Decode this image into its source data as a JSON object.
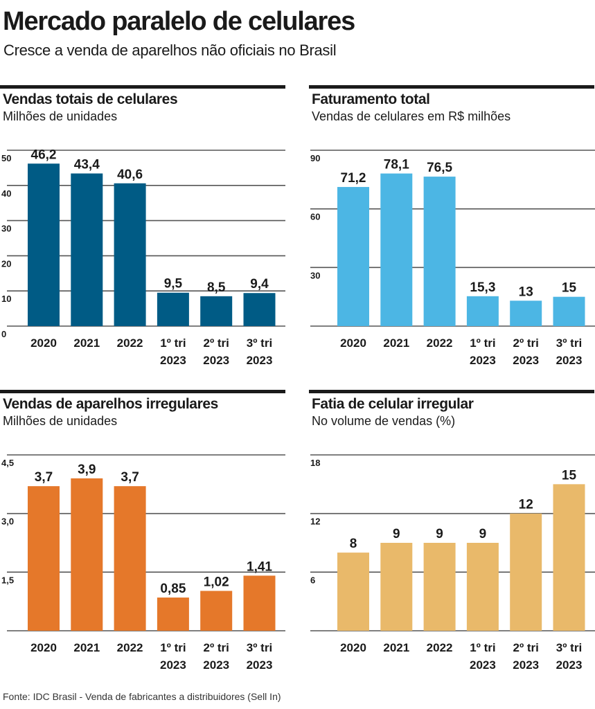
{
  "header": {
    "title": "Mercado paralelo de celulares",
    "subtitle": "Cresce a venda de aparelhos não oficiais no Brasil"
  },
  "source": "Fonte: IDC Brasil - Venda de fabricantes a distribuidores (Sell In)",
  "chart_data": [
    {
      "type": "bar",
      "title": "Vendas totais de celulares",
      "subtitle": "Milhões de unidades",
      "categories": [
        [
          "2020"
        ],
        [
          "2021"
        ],
        [
          "2022"
        ],
        [
          "1º tri",
          "2023"
        ],
        [
          "2º tri",
          "2023"
        ],
        [
          "3º tri",
          "2023"
        ]
      ],
      "values": [
        46.2,
        43.4,
        40.6,
        9.5,
        8.5,
        9.4
      ],
      "value_labels": [
        "46,2",
        "43,4",
        "40,6",
        "9,5",
        "8,5",
        "9,4"
      ],
      "ylim": [
        0,
        50
      ],
      "yticks": [
        0,
        10,
        20,
        30,
        40,
        50
      ],
      "ytick_labels": [
        "0",
        "10",
        "20",
        "30",
        "40",
        "50"
      ],
      "grid": true,
      "color": "#005b85"
    },
    {
      "type": "bar",
      "title": "Faturamento total",
      "subtitle": "Vendas de celulares em R$ milhões",
      "categories": [
        [
          "2020"
        ],
        [
          "2021"
        ],
        [
          "2022"
        ],
        [
          "1º tri",
          "2023"
        ],
        [
          "2º tri",
          "2023"
        ],
        [
          "3º tri",
          "2023"
        ]
      ],
      "values": [
        71.2,
        78.1,
        76.5,
        15.3,
        13,
        15
      ],
      "value_labels": [
        "71,2",
        "78,1",
        "76,5",
        "15,3",
        "13",
        "15"
      ],
      "ylim": [
        0,
        90
      ],
      "yticks": [
        0,
        30,
        60,
        90
      ],
      "ytick_labels": [
        "",
        "30",
        "60",
        "90"
      ],
      "grid": true,
      "color": "#4cb6e4"
    },
    {
      "type": "bar",
      "title": "Vendas de aparelhos irregulares",
      "subtitle": "Milhões de unidades",
      "categories": [
        [
          "2020"
        ],
        [
          "2021"
        ],
        [
          "2022"
        ],
        [
          "1º tri",
          "2023"
        ],
        [
          "2º tri",
          "2023"
        ],
        [
          "3º tri",
          "2023"
        ]
      ],
      "values": [
        3.7,
        3.9,
        3.7,
        0.85,
        1.02,
        1.41
      ],
      "value_labels": [
        "3,7",
        "3,9",
        "3,7",
        "0,85",
        "1,02",
        "1,41"
      ],
      "ylim": [
        0,
        4.5
      ],
      "yticks": [
        0,
        1.5,
        3.0,
        4.5
      ],
      "ytick_labels": [
        "",
        "1,5",
        "3,0",
        "4,5"
      ],
      "grid": true,
      "color": "#e5782a"
    },
    {
      "type": "bar",
      "title": "Fatia de celular irregular",
      "subtitle": "No volume de vendas (%)",
      "categories": [
        [
          "2020"
        ],
        [
          "2021"
        ],
        [
          "2022"
        ],
        [
          "1º tri",
          "2023"
        ],
        [
          "2º tri",
          "2023"
        ],
        [
          "3º tri",
          "2023"
        ]
      ],
      "values": [
        8,
        9,
        9,
        9,
        12,
        15
      ],
      "value_labels": [
        "8",
        "9",
        "9",
        "9",
        "12",
        "15"
      ],
      "ylim": [
        0,
        18
      ],
      "yticks": [
        0,
        6,
        12,
        18
      ],
      "ytick_labels": [
        "",
        "6",
        "12",
        "18"
      ],
      "grid": true,
      "color": "#e9b96a"
    }
  ]
}
